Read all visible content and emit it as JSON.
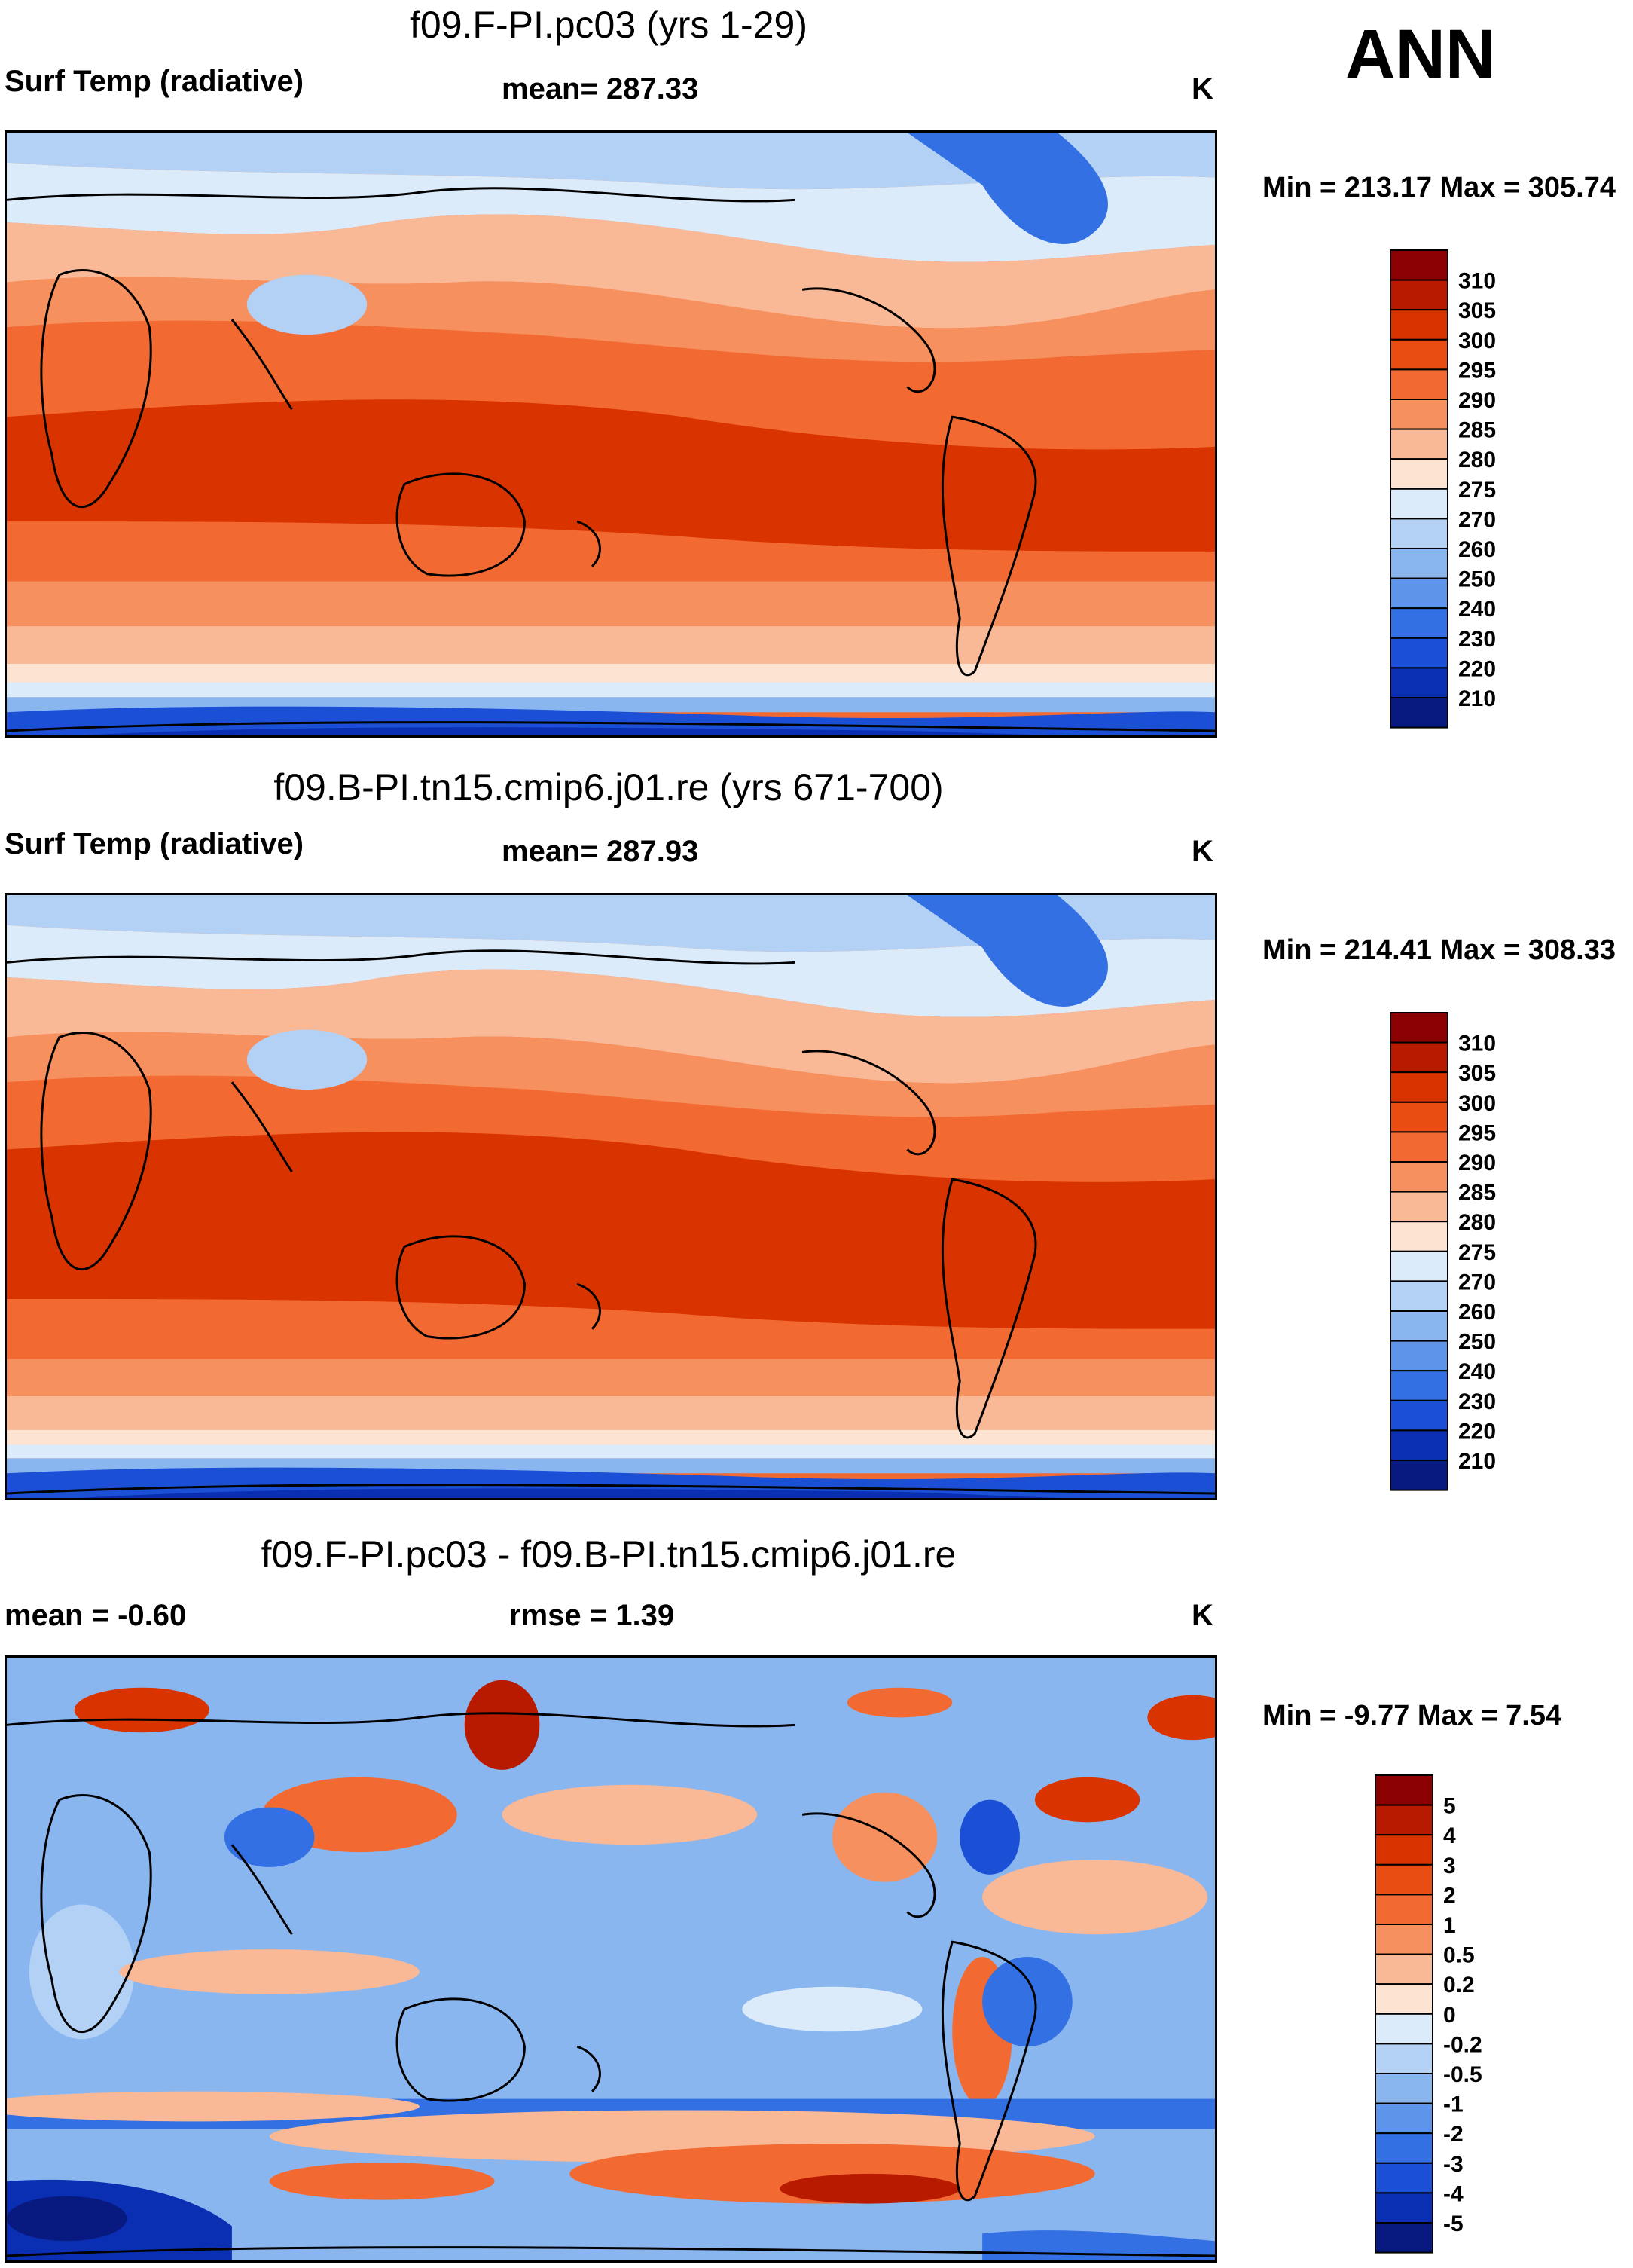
{
  "season": "ANN",
  "units": "K",
  "panels": [
    {
      "title": "f09.F-PI.pc03 (yrs 1-29)",
      "left_label": "Surf Temp (radiative)",
      "center_label": "mean= 287.33",
      "right_label": "K",
      "minmax": "Min = 213.17 Max = 305.74",
      "map_name": "panel1-map"
    },
    {
      "title": "f09.B-PI.tn15.cmip6.j01.re (yrs 671-700)",
      "left_label": "Surf Temp (radiative)",
      "center_label": "mean= 287.93",
      "right_label": "K",
      "minmax": "Min = 214.41 Max = 308.33",
      "map_name": "panel2-map"
    },
    {
      "title": "f09.F-PI.pc03 - f09.B-PI.tn15.cmip6.j01.re",
      "left_label": "mean =  -0.60",
      "center_label": "rmse =   1.39",
      "right_label": "K",
      "minmax": "Min =  -9.77 Max =   7.54",
      "map_name": "panel3-map"
    }
  ],
  "colorbars": {
    "absolute": {
      "labels": [
        "310",
        "305",
        "300",
        "295",
        "290",
        "285",
        "280",
        "275",
        "270",
        "260",
        "250",
        "240",
        "230",
        "220",
        "210"
      ],
      "colors": [
        "#8b0000",
        "#b81a00",
        "#d93300",
        "#ea4d12",
        "#f26a32",
        "#f6905e",
        "#f9b896",
        "#fde3d2",
        "#dcebfa",
        "#b3d1f5",
        "#8ab6f0",
        "#5e95ea",
        "#3370e3",
        "#1a4fd6",
        "#0a2fb3",
        "#081a80"
      ]
    },
    "difference": {
      "labels": [
        "5",
        "4",
        "3",
        "2",
        "1",
        "0.5",
        "0.2",
        "0",
        "-0.2",
        "-0.5",
        "-1",
        "-2",
        "-3",
        "-4",
        "-5"
      ],
      "colors": [
        "#8b0000",
        "#b81a00",
        "#d93300",
        "#ea4d12",
        "#f26a32",
        "#f6905e",
        "#f9b896",
        "#fde3d2",
        "#dcebfa",
        "#b3d1f5",
        "#8ab6f0",
        "#5e95ea",
        "#3370e3",
        "#1a4fd6",
        "#0a2fb3",
        "#081a80"
      ]
    }
  }
}
